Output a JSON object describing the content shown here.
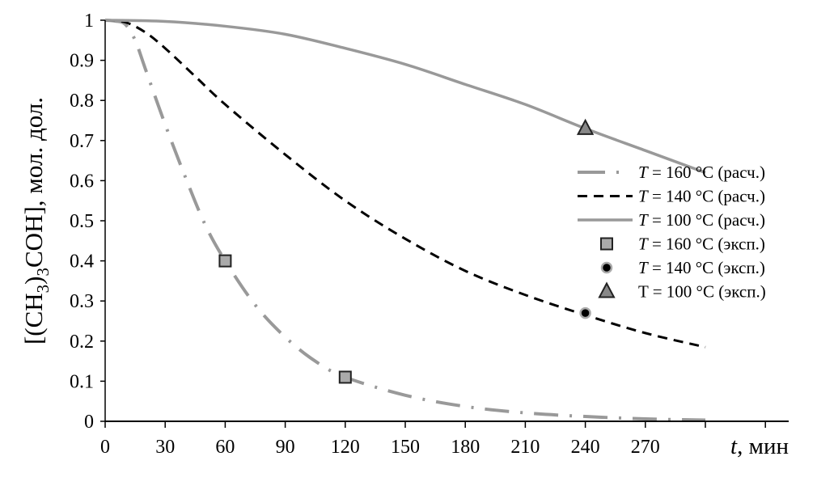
{
  "chart_data": {
    "type": "line",
    "xlabel_var": "t",
    "xlabel_unit": ", мин",
    "ylabel_parts": [
      "[(CH",
      "3",
      ")",
      "3",
      "COH], мол. дол."
    ],
    "xlim": [
      0,
      330
    ],
    "ylim": [
      0,
      1
    ],
    "xticks": [
      0,
      30,
      60,
      90,
      120,
      150,
      180,
      210,
      240,
      270
    ],
    "xtick_marks": [
      0,
      30,
      60,
      90,
      120,
      150,
      180,
      210,
      240,
      270,
      300,
      330
    ],
    "yticks": [
      "0",
      "0.1",
      "0.2",
      "0.3",
      "0.4",
      "0.5",
      "0.6",
      "0.7",
      "0.8",
      "0.9",
      "1"
    ],
    "grid": false,
    "legend_position": "right",
    "series": [
      {
        "name": "T = 160 °C (расч.)",
        "var": "T",
        "rest": " = 160 °C (расч.)",
        "style": "dashdot",
        "color": "#999999",
        "x": [
          0,
          5,
          10,
          15,
          20,
          30,
          40,
          50,
          60,
          75,
          90,
          105,
          120,
          150,
          180,
          210,
          240,
          270,
          300
        ],
        "y": [
          1,
          0.998,
          0.99,
          0.95,
          0.88,
          0.74,
          0.61,
          0.49,
          0.4,
          0.29,
          0.21,
          0.15,
          0.11,
          0.065,
          0.037,
          0.021,
          0.012,
          0.006,
          0.003
        ]
      },
      {
        "name": "T = 140 °C (расч.)",
        "var": "T",
        "rest": " = 140 °C (расч.)",
        "style": "dashed",
        "color": "#000000",
        "x": [
          0,
          10,
          20,
          30,
          45,
          60,
          90,
          120,
          150,
          180,
          210,
          240,
          270,
          300
        ],
        "y": [
          1,
          0.995,
          0.97,
          0.93,
          0.86,
          0.79,
          0.665,
          0.55,
          0.455,
          0.375,
          0.315,
          0.265,
          0.22,
          0.185
        ]
      },
      {
        "name": "T = 100 °C (расч.)",
        "var": "T",
        "rest": " = 100 °C (расч.)",
        "style": "solid",
        "color": "#999999",
        "x": [
          0,
          30,
          60,
          90,
          120,
          150,
          180,
          210,
          240,
          270,
          300
        ],
        "y": [
          1,
          0.997,
          0.985,
          0.965,
          0.93,
          0.89,
          0.84,
          0.79,
          0.73,
          0.675,
          0.62
        ]
      },
      {
        "name": "T = 160 °C (эксп.)",
        "var": "T",
        "rest": " = 160 °C (эксп.)",
        "marker": "square",
        "color": "#aaaaaa",
        "x": [
          60,
          120
        ],
        "y": [
          0.4,
          0.11
        ]
      },
      {
        "name": "T = 140 °C (эксп.)",
        "var": "T",
        "rest": " = 140 °C (эксп.)",
        "marker": "circle",
        "color": "#000000",
        "x": [
          240
        ],
        "y": [
          0.27
        ]
      },
      {
        "name": "T = 100 °C (эксп.)",
        "var": "",
        "rest": "T = 100 °C (эксп.)",
        "marker": "triangle",
        "color": "#888888",
        "x": [
          240
        ],
        "y": [
          0.73
        ]
      }
    ]
  }
}
